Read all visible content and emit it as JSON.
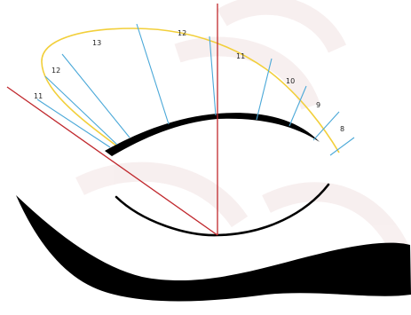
{
  "colors": {
    "background": "#ffffff",
    "watermark": "#f7eeee",
    "hour_line": "#4aa8d8",
    "hour_curve": "#f2cf3a",
    "red_line": "#c0282d",
    "black_arc": "#000000"
  },
  "diagram": {
    "hour_labels": [
      {
        "id": "left-11",
        "text": "11"
      },
      {
        "id": "left-12",
        "text": "12"
      },
      {
        "id": "left-13",
        "text": "13"
      },
      {
        "id": "top-12",
        "text": "12"
      },
      {
        "id": "right-11",
        "text": "11"
      },
      {
        "id": "right-10",
        "text": "10"
      },
      {
        "id": "right-9",
        "text": "9"
      },
      {
        "id": "right-8",
        "text": "8"
      }
    ]
  }
}
